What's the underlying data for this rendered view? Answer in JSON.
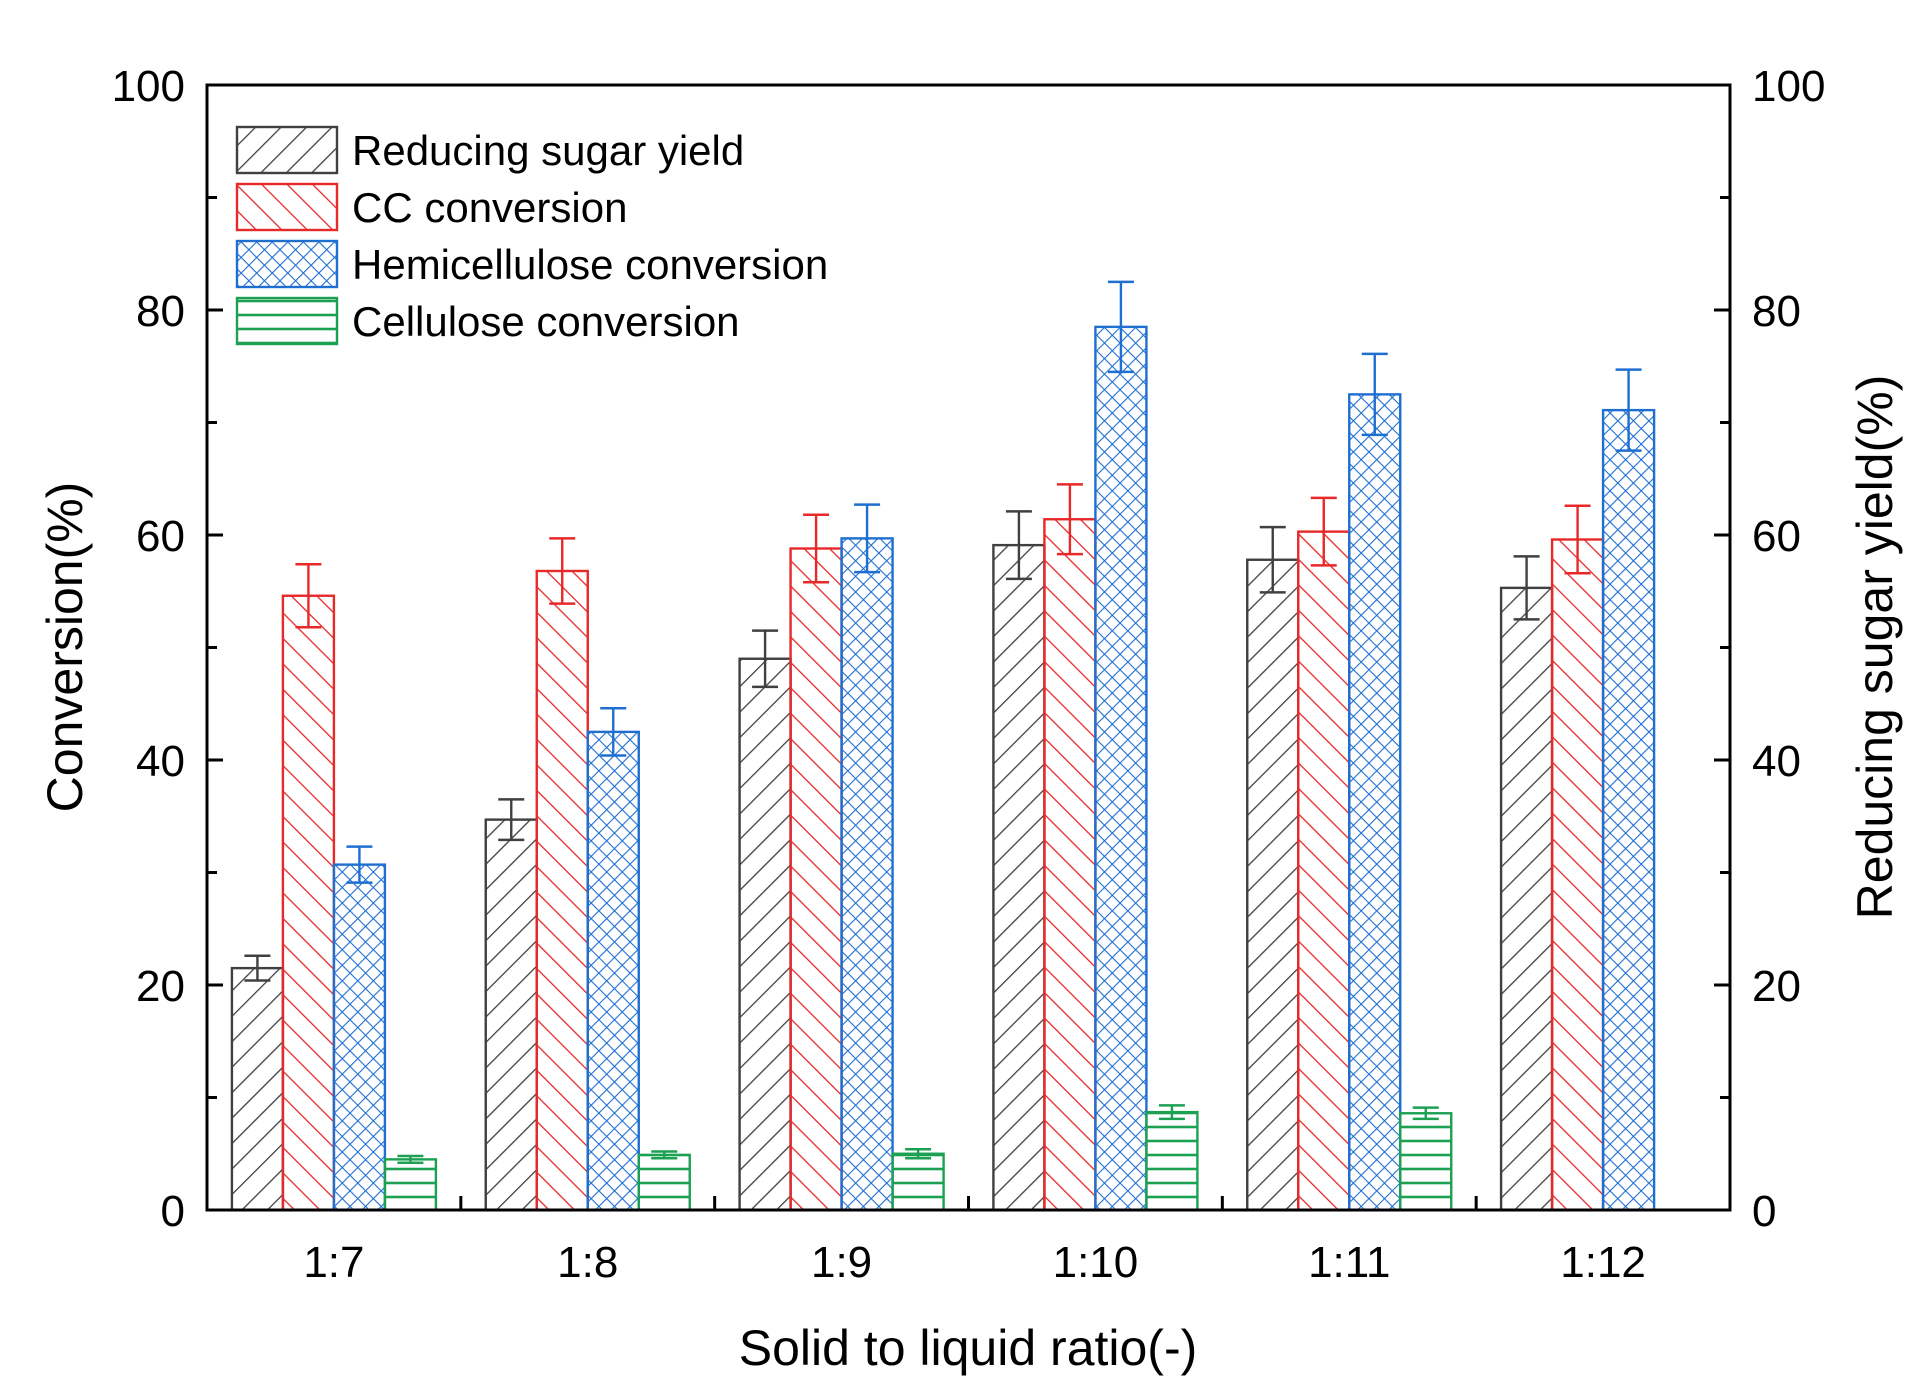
{
  "chart_data": {
    "type": "bar",
    "title": "",
    "xlabel": "Solid to liquid ratio(-)",
    "ylabel": "Conversion(%)",
    "y2label": "Reducing sugar yield(%)",
    "ylim": [
      0,
      100
    ],
    "y2lim": [
      0,
      100
    ],
    "yticks": [
      "0",
      "20",
      "40",
      "60",
      "80",
      "100"
    ],
    "y2ticks": [
      "0",
      "20",
      "40",
      "60",
      "80",
      "100"
    ],
    "legend_position": "top-left",
    "categories": [
      "1:7",
      "1:8",
      "1:9",
      "1:10",
      "1:11",
      "1:12"
    ],
    "series": [
      {
        "name": "Reducing sugar yield",
        "axis": "right",
        "color": "#404040",
        "pattern": "diagonal-forward",
        "values": [
          21.5,
          34.7,
          49.0,
          59.1,
          57.8,
          55.3
        ],
        "errors": [
          1.1,
          1.8,
          2.5,
          3.0,
          2.9,
          2.8
        ]
      },
      {
        "name": "CC conversion",
        "axis": "left",
        "color": "#e8292a",
        "pattern": "diagonal-backward",
        "values": [
          54.6,
          56.8,
          58.8,
          61.4,
          60.3,
          59.6
        ],
        "errors": [
          2.8,
          2.9,
          3.0,
          3.1,
          3.0,
          3.0
        ]
      },
      {
        "name": "Hemicellulose conversion",
        "axis": "left",
        "color": "#1f6fd1",
        "pattern": "crosshatch",
        "values": [
          30.7,
          42.5,
          59.7,
          78.5,
          72.5,
          71.1
        ],
        "errors": [
          1.6,
          2.1,
          3.0,
          4.0,
          3.6,
          3.6
        ]
      },
      {
        "name": "Cellulose conversion",
        "axis": "left",
        "color": "#1ca153",
        "pattern": "horizontal",
        "values": [
          4.5,
          4.9,
          5.0,
          8.7,
          8.6,
          null
        ],
        "errors": [
          0.3,
          0.3,
          0.4,
          0.6,
          0.5,
          null
        ]
      }
    ]
  }
}
